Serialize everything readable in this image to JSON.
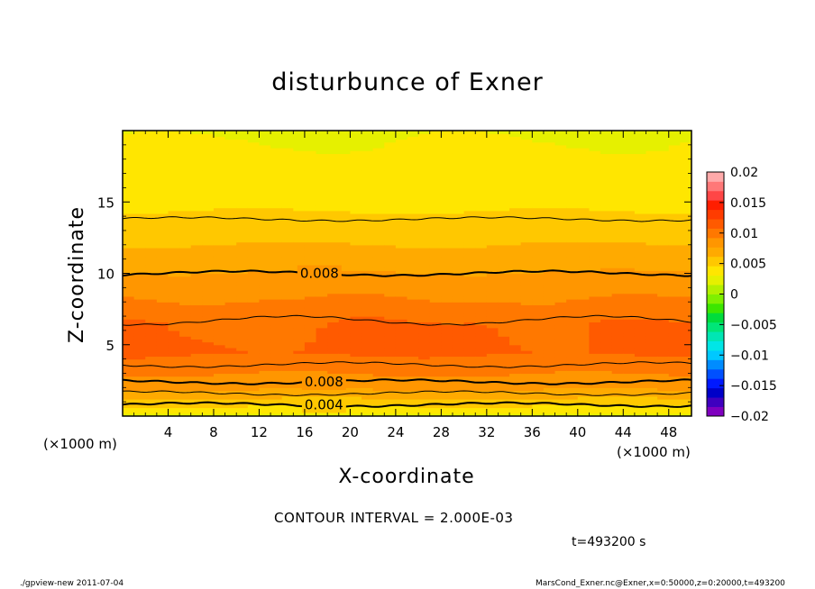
{
  "chart_data": {
    "type": "heatmap",
    "title": "disturbunce of Exner",
    "xlabel": "X-coordinate",
    "ylabel": "Z-coordinate",
    "x_unit": "(×1000 m)",
    "y_unit": "(×1000 m)",
    "xlim": [
      0,
      50
    ],
    "ylim": [
      0,
      20
    ],
    "x_ticks": [
      4,
      8,
      12,
      16,
      20,
      24,
      28,
      32,
      36,
      40,
      44,
      48
    ],
    "y_ticks": [
      5,
      10,
      15
    ],
    "contour_interval": "CONTOUR INTERVAL = 2.000E-03",
    "contour_labels": [
      {
        "text": "0.008",
        "x": 17.3,
        "z": 10.0
      },
      {
        "text": "0.008",
        "x": 17.7,
        "z": 2.4
      },
      {
        "text": "0.004",
        "x": 17.7,
        "z": 0.8
      }
    ],
    "colorbar": {
      "ticks": [
        "0.02",
        "0.015",
        "0.01",
        "0.005",
        "0",
        "−0.005",
        "−0.01",
        "−0.015",
        "−0.02"
      ],
      "min": -0.02,
      "max": 0.02,
      "colors": [
        "#7f00bf",
        "#3f00bf",
        "#0000c8",
        "#0019ff",
        "#0050ff",
        "#008cff",
        "#00c8ff",
        "#00e6e6",
        "#00e6b4",
        "#00e678",
        "#00dc3c",
        "#3ce600",
        "#7ff000",
        "#b4f000",
        "#e6f000",
        "#ffe600",
        "#ffc800",
        "#ffaa00",
        "#ff9600",
        "#ff7800",
        "#ff5a00",
        "#ff3c00",
        "#ff1e00",
        "#ff4646",
        "#ff7878",
        "#ffaaaa"
      ]
    },
    "profile_levels_z": [
      0,
      0.5,
      1.2,
      1.6,
      2.0,
      2.7,
      3.5,
      4.5,
      6.5,
      7.5,
      8.5,
      9.8,
      11.0,
      12.6,
      14.0,
      16.0,
      18.0,
      20.0
    ],
    "profile_values": [
      0.0025,
      0.004,
      0.006,
      0.007,
      0.008,
      0.009,
      0.0098,
      0.011,
      0.0108,
      0.0098,
      0.009,
      0.008,
      0.0068,
      0.0058,
      0.0048,
      0.0038,
      0.0032,
      0.003
    ],
    "contour_lines": [
      {
        "value": 0.004,
        "z_level": 0.8,
        "bold": true
      },
      {
        "value": 0.006,
        "z_level": 1.6,
        "bold": false
      },
      {
        "value": 0.008,
        "z_level": 2.4,
        "bold": true
      },
      {
        "value": 0.01,
        "z_level": 3.6,
        "bold": false
      },
      {
        "value": 0.01,
        "z_level": 6.7,
        "bold": false
      },
      {
        "value": 0.008,
        "z_level": 10.0,
        "bold": true
      },
      {
        "value": 0.006,
        "z_level": 13.8,
        "bold": false
      }
    ]
  },
  "footer": {
    "time": "t=493200 s",
    "left": "./gpview-new   2011-07-04",
    "right": "MarsCond_Exner.nc@Exner,x=0:50000,z=0:20000,t=493200"
  }
}
